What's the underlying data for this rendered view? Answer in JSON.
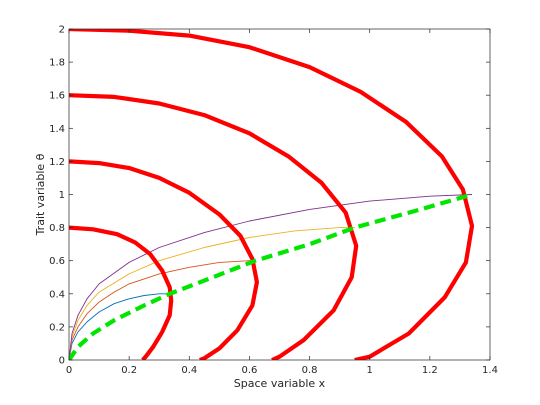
{
  "chart_data": {
    "type": "line",
    "xlabel": "Space variable x",
    "ylabel": "Trait variable θ",
    "xlim": [
      0,
      1.4
    ],
    "ylim": [
      0,
      2
    ],
    "xticks": [
      0,
      0.2,
      0.4,
      0.6,
      0.8,
      1,
      1.2,
      1.4
    ],
    "xtick_labels": [
      "0",
      "0.2",
      "0.4",
      "0.6",
      "0.8",
      "1",
      "1.2",
      "1.4"
    ],
    "yticks": [
      0,
      0.2,
      0.4,
      0.6,
      0.8,
      1,
      1.2,
      1.4,
      1.6,
      1.8,
      2
    ],
    "ytick_labels": [
      "0",
      "0.2",
      "0.4",
      "0.6",
      "0.8",
      "1",
      "1.2",
      "1.4",
      "1.6",
      "1.8",
      "2"
    ],
    "grid": false,
    "legend": "none",
    "series": [
      {
        "color": "#ff0000",
        "style": "thick-solid",
        "x": [
          0,
          0.08,
          0.16,
          0.22,
          0.27,
          0.31,
          0.335,
          0.34,
          0.335,
          0.31,
          0.28,
          0.255,
          0.245
        ],
        "y": [
          0.8,
          0.79,
          0.76,
          0.71,
          0.64,
          0.54,
          0.44,
          0.36,
          0.27,
          0.17,
          0.08,
          0.02,
          0
        ]
      },
      {
        "color": "#ff0000",
        "style": "thick-solid",
        "x": [
          0,
          0.1,
          0.2,
          0.3,
          0.4,
          0.5,
          0.57,
          0.61,
          0.625,
          0.61,
          0.56,
          0.5,
          0.45,
          0.435
        ],
        "y": [
          1.2,
          1.19,
          1.16,
          1.1,
          1.01,
          0.88,
          0.75,
          0.61,
          0.47,
          0.33,
          0.18,
          0.07,
          0.01,
          0
        ]
      },
      {
        "color": "#ff0000",
        "style": "thick-solid",
        "x": [
          0,
          0.15,
          0.3,
          0.45,
          0.6,
          0.73,
          0.84,
          0.92,
          0.955,
          0.94,
          0.88,
          0.78,
          0.7,
          0.675
        ],
        "y": [
          1.6,
          1.59,
          1.55,
          1.48,
          1.37,
          1.23,
          1.07,
          0.89,
          0.69,
          0.5,
          0.3,
          0.12,
          0.02,
          0
        ]
      },
      {
        "color": "#ff0000",
        "style": "thick-solid",
        "x": [
          0,
          0.2,
          0.4,
          0.6,
          0.8,
          0.97,
          1.12,
          1.24,
          1.31,
          1.34,
          1.32,
          1.25,
          1.13,
          1.0,
          0.95
        ],
        "y": [
          2.0,
          1.99,
          1.96,
          1.89,
          1.77,
          1.62,
          1.44,
          1.23,
          1.03,
          0.81,
          0.59,
          0.38,
          0.16,
          0.02,
          0
        ]
      },
      {
        "color": "#00e600",
        "style": "thick-dashed",
        "x": [
          0,
          0.03,
          0.08,
          0.15,
          0.25,
          0.335,
          0.45,
          0.62,
          0.8,
          0.95,
          1.15,
          1.34
        ],
        "y": [
          0,
          0.08,
          0.16,
          0.24,
          0.33,
          0.4,
          0.48,
          0.6,
          0.7,
          0.8,
          0.9,
          1.0
        ]
      },
      {
        "color": "#0072bd",
        "style": "thin",
        "x": [
          0,
          0.01,
          0.03,
          0.06,
          0.1,
          0.15,
          0.2,
          0.25,
          0.3,
          0.335
        ],
        "y": [
          0,
          0.1,
          0.17,
          0.23,
          0.29,
          0.34,
          0.37,
          0.39,
          0.4,
          0.4
        ]
      },
      {
        "color": "#d95319",
        "style": "thin",
        "x": [
          0,
          0.01,
          0.03,
          0.06,
          0.1,
          0.15,
          0.2,
          0.3,
          0.4,
          0.5,
          0.6,
          0.62
        ],
        "y": [
          0,
          0.12,
          0.2,
          0.28,
          0.35,
          0.41,
          0.46,
          0.52,
          0.56,
          0.59,
          0.6,
          0.6
        ]
      },
      {
        "color": "#edb120",
        "style": "thin",
        "x": [
          0,
          0.01,
          0.03,
          0.06,
          0.1,
          0.2,
          0.3,
          0.45,
          0.6,
          0.75,
          0.9,
          0.95
        ],
        "y": [
          0,
          0.14,
          0.24,
          0.33,
          0.41,
          0.52,
          0.6,
          0.68,
          0.74,
          0.78,
          0.8,
          0.8
        ]
      },
      {
        "color": "#7e2f8e",
        "style": "thin",
        "x": [
          0,
          0.01,
          0.03,
          0.06,
          0.1,
          0.2,
          0.3,
          0.45,
          0.6,
          0.8,
          1.0,
          1.2,
          1.34
        ],
        "y": [
          0,
          0.16,
          0.27,
          0.37,
          0.46,
          0.59,
          0.68,
          0.77,
          0.84,
          0.91,
          0.96,
          0.99,
          1.0
        ]
      }
    ]
  }
}
